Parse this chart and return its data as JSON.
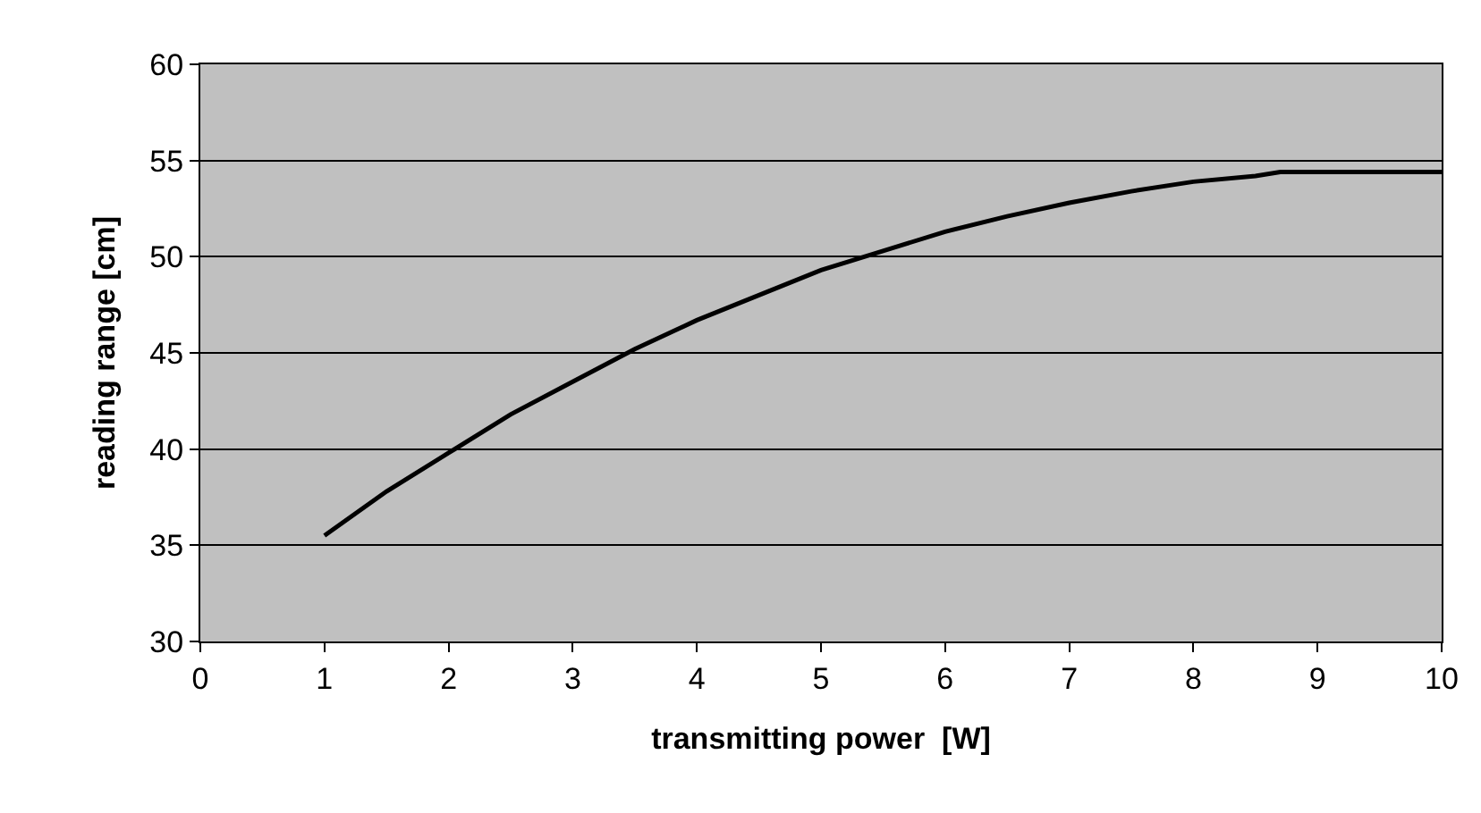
{
  "chart_data": {
    "type": "line",
    "xlabel": "transmitting power  [W]",
    "ylabel": "reading range [cm]",
    "x": [
      1,
      1.5,
      2,
      2.5,
      3,
      3.5,
      4,
      4.5,
      5,
      5.5,
      6,
      6.5,
      7,
      7.5,
      8,
      8.5,
      8.7,
      9,
      10
    ],
    "series": [
      {
        "color": "#000000",
        "values": [
          35.5,
          37.8,
          39.8,
          41.8,
          43.5,
          45.2,
          46.7,
          48.0,
          49.3,
          50.3,
          51.3,
          52.1,
          52.8,
          53.4,
          53.9,
          54.2,
          54.4,
          54.4,
          54.4
        ]
      }
    ],
    "xlim": [
      0,
      10
    ],
    "xticks": [
      0,
      1,
      2,
      3,
      4,
      5,
      6,
      7,
      8,
      9,
      10
    ],
    "ylim": [
      30,
      60
    ],
    "yticks": [
      30,
      35,
      40,
      45,
      50,
      55,
      60
    ],
    "grid": "y",
    "marker": "none",
    "line_style": "solid"
  }
}
